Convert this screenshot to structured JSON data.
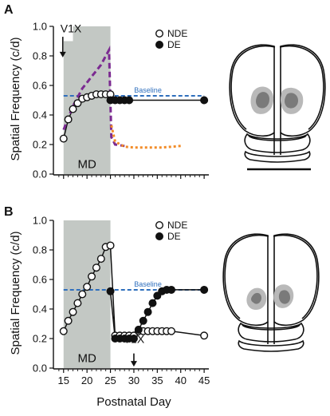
{
  "chart_data": [
    {
      "panel": "A",
      "type": "line",
      "ylabel": "Spatial Frequency (c/d)",
      "xlabel": "",
      "ylim": [
        0,
        1.0
      ],
      "xlim": [
        13,
        46
      ],
      "yticks": [
        "0.0",
        "0.2",
        "0.4",
        "0.6",
        "0.8",
        "1.0"
      ],
      "xtick_positions": [
        15,
        20,
        25,
        30,
        35,
        40,
        45
      ],
      "grid": false,
      "legend_position": "top-right",
      "shaded": {
        "label": "MD",
        "x_from": 15,
        "x_to": 25,
        "y_to": 1.0,
        "notch": {
          "x_from": 15,
          "x_to": 17,
          "y_from": 0.9,
          "y_to": 1.0
        }
      },
      "baseline": {
        "label": "Baseline",
        "y": 0.53,
        "x_from": 15,
        "x_to": 45,
        "color": "#2f6fbd"
      },
      "annotation": {
        "label": "V1X",
        "x": 15,
        "arrow_from": 0.94,
        "arrow_to": 0.79
      },
      "series": [
        {
          "name": "NDE",
          "marker": "open-circle",
          "x": [
            15,
            16,
            17,
            18,
            19,
            20,
            21,
            22,
            23,
            24,
            25
          ],
          "y": [
            0.24,
            0.37,
            0.44,
            0.48,
            0.51,
            0.52,
            0.53,
            0.54,
            0.54,
            0.54,
            0.54
          ]
        },
        {
          "name": "DE",
          "marker": "filled-circle",
          "x": [
            25,
            26,
            27,
            28,
            29,
            45
          ],
          "y": [
            0.5,
            0.5,
            0.5,
            0.5,
            0.5,
            0.5
          ]
        },
        {
          "name": "",
          "style": "dashed",
          "color": "#7b2a91",
          "x": [
            15,
            16,
            17,
            18,
            19,
            20,
            21,
            22,
            23,
            24,
            24.7,
            25.2,
            26,
            28
          ],
          "y": [
            0.3,
            0.38,
            0.46,
            0.52,
            0.58,
            0.62,
            0.66,
            0.7,
            0.74,
            0.8,
            0.84,
            0.25,
            0.2,
            0.19
          ]
        },
        {
          "name": "",
          "style": "dotted",
          "color": "#f28c28",
          "x": [
            25.2,
            26,
            28,
            30,
            32,
            34,
            36,
            38,
            40
          ],
          "y": [
            0.33,
            0.22,
            0.185,
            0.18,
            0.18,
            0.18,
            0.18,
            0.185,
            0.19
          ]
        }
      ]
    },
    {
      "panel": "B",
      "type": "line",
      "ylabel": "Spatial Frequency (c/d)",
      "xlabel": "Postnatal Day",
      "ylim": [
        0,
        1.0
      ],
      "xlim": [
        13,
        46
      ],
      "yticks": [
        "0.0",
        "0.2",
        "0.4",
        "0.6",
        "0.8",
        "1.0"
      ],
      "xticks": [
        "15",
        "20",
        "25",
        "30",
        "35",
        "40",
        "45"
      ],
      "xtick_positions": [
        15,
        20,
        25,
        30,
        35,
        40,
        45
      ],
      "grid": false,
      "legend_position": "top-right",
      "shaded": {
        "label": "MD",
        "x_from": 15,
        "x_to": 25,
        "y_to": 1.0
      },
      "baseline": {
        "label": "Baseline",
        "y": 0.53,
        "x_from": 15,
        "x_to": 45,
        "color": "#2f6fbd"
      },
      "annotation": {
        "label": "V1X",
        "x": 30,
        "arrow_from": 0.11,
        "arrow_to": 0.01
      },
      "series": [
        {
          "name": "NDE",
          "marker": "open-circle",
          "x": [
            15,
            16,
            17,
            18,
            19,
            20,
            21,
            22,
            23,
            24,
            25,
            26,
            27,
            28,
            29,
            30,
            31,
            32,
            33,
            34,
            35,
            36,
            37,
            38,
            45
          ],
          "y": [
            0.25,
            0.32,
            0.38,
            0.44,
            0.5,
            0.55,
            0.62,
            0.68,
            0.74,
            0.82,
            0.83,
            0.22,
            0.22,
            0.22,
            0.22,
            0.22,
            0.25,
            0.25,
            0.25,
            0.25,
            0.25,
            0.25,
            0.25,
            0.25,
            0.22
          ]
        },
        {
          "name": "DE",
          "marker": "filled-circle",
          "x": [
            25,
            26,
            27,
            28,
            29,
            30,
            31,
            32,
            33,
            34,
            35,
            36,
            37,
            38,
            45
          ],
          "y": [
            0.52,
            0.2,
            0.2,
            0.2,
            0.2,
            0.2,
            0.26,
            0.32,
            0.38,
            0.44,
            0.49,
            0.52,
            0.53,
            0.53,
            0.53
          ]
        }
      ]
    }
  ],
  "brain_figures": [
    {
      "panel": "A",
      "name": "mouse-brain-dorsal-view",
      "activity_color": "#8a8a8a",
      "has_scale_bar": true
    },
    {
      "panel": "B",
      "name": "mouse-brain-dorsal-view",
      "activity_color": "#8a8a8a",
      "has_scale_bar": false
    }
  ],
  "colors": {
    "shade": "#c3c8c4",
    "baseline": "#2f6fbd",
    "purple": "#7b2a91",
    "orange": "#f28c28",
    "ink": "#111111"
  }
}
